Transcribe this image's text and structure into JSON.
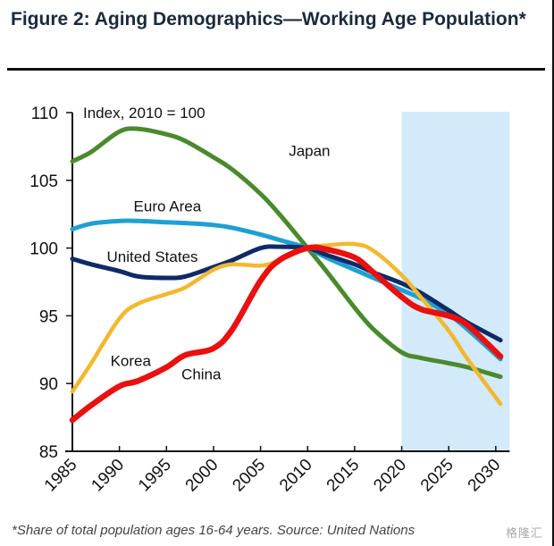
{
  "title": "Figure 2: Aging Demographics—Working Age Population*",
  "footnote": "*Share of total population ages 16-64 years. Source: United Nations",
  "watermark": "格隆汇",
  "chart_data": {
    "type": "line",
    "title": "Figure 2: Aging Demographics—Working Age Population*",
    "annotation": "Index, 2010 = 100",
    "xlabel": "",
    "ylabel": "",
    "xlim": [
      1985,
      2031
    ],
    "ylim": [
      85,
      110
    ],
    "xticks": [
      1985,
      1990,
      1995,
      2000,
      2005,
      2010,
      2015,
      2020,
      2025,
      2030
    ],
    "yticks": [
      85,
      90,
      95,
      100,
      105,
      110
    ],
    "grid": false,
    "legend": "inline labels",
    "shaded_region": {
      "x_start": 2020,
      "x_end": 2031,
      "color": "#d3eafb",
      "meaning": "projection"
    },
    "x": [
      1985,
      1987,
      1990,
      1992,
      1995,
      1997,
      2000,
      2002,
      2005,
      2007,
      2010,
      2012,
      2015,
      2017,
      2020,
      2022,
      2025,
      2027,
      2030.5
    ],
    "series": [
      {
        "name": "Japan",
        "color": "#4a8a2e",
        "values": [
          106.4,
          107.1,
          108.6,
          108.8,
          108.4,
          107.9,
          106.7,
          105.8,
          104.0,
          102.5,
          100.0,
          98.3,
          95.6,
          94.0,
          92.3,
          91.9,
          91.5,
          91.2,
          90.5
        ]
      },
      {
        "name": "Euro Area",
        "color": "#1ea0d2",
        "values": [
          101.4,
          101.8,
          102.0,
          102.0,
          101.9,
          101.85,
          101.7,
          101.5,
          101.0,
          100.6,
          100.0,
          99.3,
          98.4,
          97.8,
          96.9,
          96.3,
          95.1,
          94.0,
          91.8
        ]
      },
      {
        "name": "United States",
        "color": "#0f2a66",
        "values": [
          99.2,
          98.8,
          98.3,
          97.9,
          97.8,
          97.9,
          98.6,
          99.1,
          100.0,
          100.1,
          100.0,
          99.5,
          98.8,
          98.2,
          97.4,
          96.7,
          95.4,
          94.5,
          93.2
        ]
      },
      {
        "name": "Korea",
        "color": "#f2b830",
        "values": [
          89.4,
          91.5,
          94.8,
          95.9,
          96.6,
          97.1,
          98.4,
          98.8,
          98.7,
          99.1,
          100.0,
          100.2,
          100.3,
          99.8,
          98.0,
          96.4,
          93.9,
          91.8,
          88.5
        ]
      },
      {
        "name": "China",
        "color": "#e81010",
        "values": [
          87.3,
          88.4,
          89.8,
          90.2,
          91.2,
          92.1,
          92.6,
          94.0,
          97.6,
          99.1,
          100.0,
          99.9,
          99.3,
          98.2,
          96.4,
          95.5,
          95.0,
          94.3,
          92.0
        ]
      }
    ],
    "series_labels": [
      {
        "name": "Japan",
        "at": [
          2010.2,
          106.8
        ]
      },
      {
        "name": "Euro Area",
        "at": [
          1995.1,
          102.7
        ]
      },
      {
        "name": "United States",
        "at": [
          1993.5,
          99.0
        ]
      },
      {
        "name": "Korea",
        "at": [
          1991.2,
          91.3
        ]
      },
      {
        "name": "China",
        "at": [
          1998.7,
          90.3
        ]
      }
    ]
  }
}
